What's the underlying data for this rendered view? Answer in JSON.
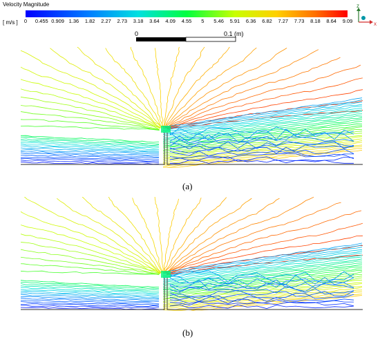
{
  "colorbar": {
    "title": "Velocity Magnitude",
    "unit": "[ m/s ]",
    "ticks": [
      "0",
      "0.455",
      "0.909",
      "1.36",
      "1.82",
      "2.27",
      "2.73",
      "3.18",
      "3.64",
      "4.09",
      "4.55",
      "5",
      "5.46",
      "5.91",
      "6.36",
      "6.82",
      "7.27",
      "7.73",
      "8.18",
      "8.64",
      "9.09"
    ],
    "min": 0,
    "max": 9.09
  },
  "scale_bar": {
    "start_label": "0",
    "end_label": "0.1 (m)"
  },
  "axes_triad": {
    "z": "z",
    "x": "x",
    "colors": {
      "z": "#2e7d32",
      "x": "#d32f2f",
      "y": "#0097a7"
    }
  },
  "panels": [
    {
      "caption": "(a)"
    },
    {
      "caption": "(b)"
    }
  ],
  "colors": {
    "low": "#0000ff",
    "high": "#ff0000",
    "wall": "#555555"
  }
}
